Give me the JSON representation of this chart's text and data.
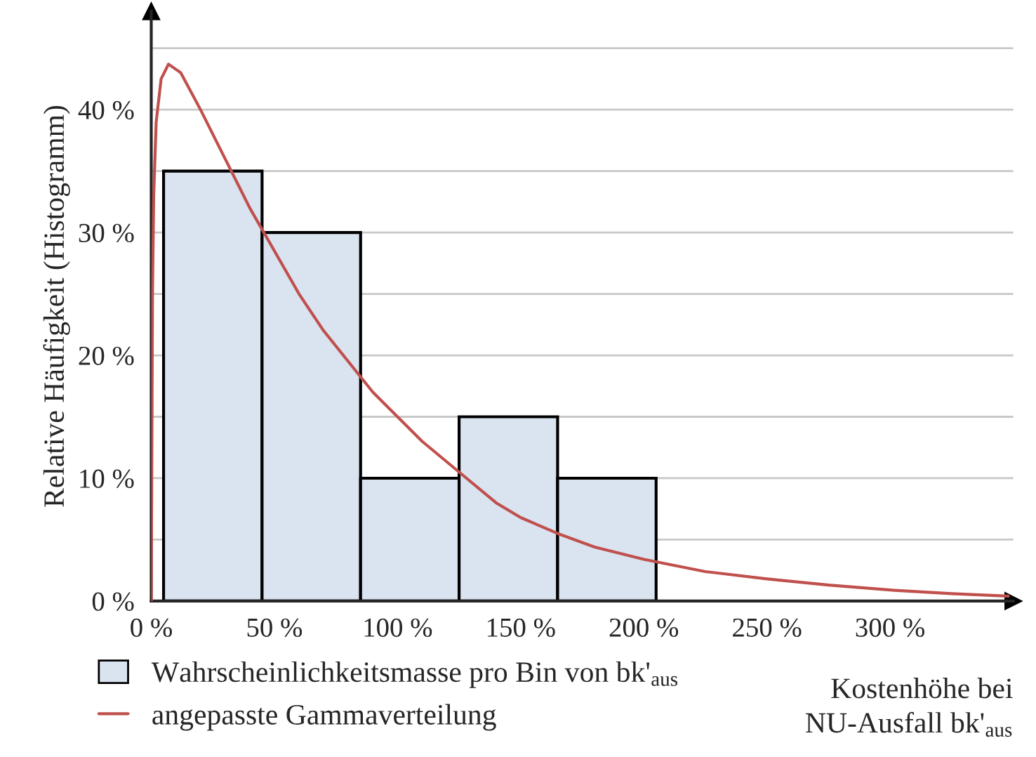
{
  "chart_data": {
    "type": "histogram",
    "ylabel": "Relative Häufigkeit (Histogramm)",
    "xlabel": "Kostenhöhe bei\nNU-Ausfall bk'$_{aus}$",
    "bins": [
      5,
      45,
      85,
      125,
      165,
      205
    ],
    "series": [
      {
        "name": "Wahrscheinlichkeitsmasse pro Bin von bk'$_{aus}$",
        "color": "#dae3f0",
        "values": [
          35,
          30,
          10,
          15,
          10
        ]
      },
      {
        "type": "line",
        "name": "angepasste Gammaverteilung",
        "color": "#c0504d",
        "x": [
          0,
          0.5,
          1,
          2,
          4,
          7,
          12,
          20,
          30,
          40,
          50,
          60,
          70,
          80,
          90,
          100,
          110,
          125,
          140,
          150,
          165,
          180,
          200,
          225,
          250,
          275,
          300,
          325,
          348
        ],
        "values": [
          0,
          25,
          33,
          39,
          42.5,
          43.7,
          43,
          40,
          36,
          32,
          28.5,
          25,
          22,
          19.5,
          17,
          15,
          13,
          10.5,
          8,
          6.8,
          5.5,
          4.4,
          3.4,
          2.4,
          1.8,
          1.3,
          0.9,
          0.6,
          0.4
        ]
      }
    ],
    "xlim": [
      0,
      350
    ],
    "ylim": [
      0,
      48
    ],
    "xticks": [
      {
        "value": 0,
        "label": "0 %"
      },
      {
        "value": 50,
        "label": "50 %"
      },
      {
        "value": 100,
        "label": "100 %"
      },
      {
        "value": 150,
        "label": "150 %"
      },
      {
        "value": 200,
        "label": "200 %"
      },
      {
        "value": 250,
        "label": "250 %"
      },
      {
        "value": 300,
        "label": "300 %"
      }
    ],
    "yticks": [
      {
        "value": 0,
        "label": "0 %"
      },
      {
        "value": 5,
        "label": null
      },
      {
        "value": 10,
        "label": "10 %"
      },
      {
        "value": 15,
        "label": null
      },
      {
        "value": 20,
        "label": "20 %"
      },
      {
        "value": 25,
        "label": null
      },
      {
        "value": 30,
        "label": "30 %"
      },
      {
        "value": 35,
        "label": null
      },
      {
        "value": 40,
        "label": "40 %"
      },
      {
        "value": 45,
        "label": null
      }
    ],
    "grid": "y",
    "legend": "bottom left"
  }
}
